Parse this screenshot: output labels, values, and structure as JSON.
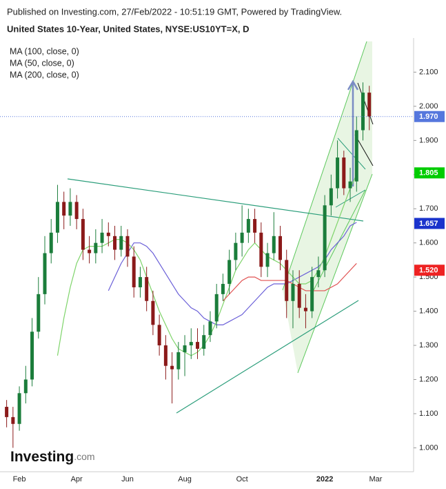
{
  "header": {
    "published": "Published on Investing.com, 27/Feb/2022 - 10:51:19 GMT, Powered by TradingView."
  },
  "logo": {
    "name": "Investing",
    "suffix": ".com"
  },
  "chart_data": {
    "type": "candlestick",
    "title": "United States 10-Year, United States, NYSE:US10YT=X, D",
    "categories": [
      null,
      null,
      "Feb",
      null,
      null,
      null,
      null,
      null,
      null,
      null,
      null,
      "Apr",
      null,
      null,
      null,
      null,
      null,
      null,
      null,
      "Jun",
      null,
      null,
      null,
      null,
      null,
      null,
      null,
      null,
      "Aug",
      null,
      null,
      null,
      null,
      null,
      null,
      null,
      null,
      "Oct",
      null,
      null,
      null,
      null,
      null,
      null,
      null,
      null,
      null,
      null,
      null,
      null,
      "2022",
      null,
      null,
      null,
      null,
      null,
      null,
      null,
      "Mar",
      null
    ],
    "open": [
      1.12,
      1.09,
      1.07,
      1.16,
      1.2,
      1.34,
      1.45,
      1.57,
      1.63,
      1.72,
      1.68,
      1.72,
      1.67,
      1.58,
      1.57,
      1.6,
      1.63,
      1.62,
      1.58,
      1.62,
      1.56,
      1.47,
      1.5,
      1.43,
      1.36,
      1.3,
      1.24,
      1.23,
      1.28,
      1.3,
      1.31,
      1.29,
      1.33,
      1.37,
      1.45,
      1.48,
      1.55,
      1.6,
      1.63,
      1.67,
      1.63,
      1.53,
      1.57,
      1.62,
      1.55,
      1.43,
      1.48,
      1.41,
      1.4,
      1.5,
      1.52,
      1.71,
      1.76,
      1.85,
      1.76,
      1.78,
      1.93,
      2.04,
      null,
      null
    ],
    "high": [
      1.14,
      1.12,
      1.18,
      1.24,
      1.38,
      1.5,
      1.62,
      1.67,
      1.77,
      1.75,
      1.76,
      1.74,
      1.7,
      1.62,
      1.64,
      1.67,
      1.66,
      1.65,
      1.65,
      1.64,
      1.59,
      1.53,
      1.53,
      1.46,
      1.39,
      1.33,
      1.28,
      1.31,
      1.33,
      1.35,
      1.35,
      1.36,
      1.4,
      1.48,
      1.51,
      1.58,
      1.63,
      1.71,
      1.7,
      1.7,
      1.66,
      1.6,
      1.69,
      1.65,
      1.58,
      1.52,
      1.52,
      1.45,
      1.53,
      1.56,
      1.74,
      1.8,
      1.9,
      1.87,
      1.82,
      1.97,
      2.07,
      2.06,
      null,
      null
    ],
    "low": [
      1.06,
      1.0,
      1.05,
      1.13,
      1.18,
      1.32,
      1.42,
      1.54,
      1.6,
      1.64,
      1.65,
      1.64,
      1.55,
      1.54,
      1.54,
      1.57,
      1.59,
      1.55,
      1.56,
      1.53,
      1.44,
      1.44,
      1.4,
      1.33,
      1.27,
      1.2,
      1.13,
      1.2,
      1.21,
      1.26,
      1.26,
      1.27,
      1.31,
      1.35,
      1.43,
      1.45,
      1.52,
      1.56,
      1.6,
      1.6,
      1.5,
      1.5,
      1.55,
      1.52,
      1.38,
      1.35,
      1.38,
      1.35,
      1.38,
      1.47,
      1.5,
      1.68,
      1.73,
      1.74,
      1.72,
      1.75,
      1.9,
      1.93,
      null,
      null
    ],
    "close": [
      1.09,
      1.07,
      1.16,
      1.2,
      1.34,
      1.45,
      1.57,
      1.63,
      1.72,
      1.68,
      1.72,
      1.67,
      1.58,
      1.57,
      1.6,
      1.63,
      1.62,
      1.58,
      1.62,
      1.56,
      1.47,
      1.5,
      1.43,
      1.36,
      1.3,
      1.24,
      1.23,
      1.28,
      1.3,
      1.31,
      1.29,
      1.33,
      1.37,
      1.45,
      1.48,
      1.55,
      1.6,
      1.63,
      1.67,
      1.63,
      1.53,
      1.57,
      1.62,
      1.55,
      1.43,
      1.48,
      1.41,
      1.4,
      1.5,
      1.52,
      1.71,
      1.76,
      1.85,
      1.76,
      1.78,
      1.93,
      2.04,
      1.97,
      null,
      null
    ],
    "up_color": "#1b7d3b",
    "down_color": "#8b1a1a",
    "series": [
      {
        "name": "MA (100, close, 0)",
        "color": "#6a5fd8",
        "values": [
          null,
          null,
          null,
          null,
          null,
          null,
          null,
          null,
          null,
          null,
          null,
          null,
          null,
          null,
          null,
          null,
          1.46,
          1.5,
          1.54,
          1.57,
          1.6,
          1.6,
          1.59,
          1.57,
          1.54,
          1.51,
          1.48,
          1.45,
          1.43,
          1.41,
          1.4,
          1.38,
          1.37,
          1.36,
          1.36,
          1.37,
          1.38,
          1.39,
          1.41,
          1.43,
          1.45,
          1.47,
          1.48,
          1.48,
          1.48,
          1.49,
          1.5,
          1.51,
          1.52,
          1.53,
          1.55,
          1.58,
          1.6,
          1.62,
          1.65,
          1.66,
          null,
          null,
          null,
          null
        ]
      },
      {
        "name": "MA (50, close, 0)",
        "color": "#7ed46a",
        "values": [
          null,
          null,
          null,
          null,
          null,
          null,
          null,
          null,
          1.27,
          1.38,
          1.47,
          1.54,
          1.58,
          1.59,
          1.59,
          1.59,
          1.6,
          1.61,
          1.61,
          1.6,
          1.58,
          1.55,
          1.5,
          1.45,
          1.4,
          1.36,
          1.32,
          1.29,
          1.28,
          1.27,
          1.28,
          1.3,
          1.33,
          1.37,
          1.42,
          1.47,
          1.52,
          1.55,
          1.58,
          1.6,
          1.58,
          1.56,
          1.55,
          1.54,
          1.52,
          1.5,
          1.48,
          1.48,
          1.49,
          1.52,
          1.56,
          1.61,
          1.66,
          1.71,
          1.76,
          1.8,
          null,
          null,
          null,
          null
        ]
      },
      {
        "name": "MA (200, close, 0)",
        "color": "#e05050",
        "values": [
          null,
          null,
          null,
          null,
          null,
          null,
          null,
          null,
          null,
          null,
          null,
          null,
          null,
          null,
          null,
          null,
          null,
          null,
          null,
          null,
          null,
          null,
          null,
          null,
          null,
          null,
          null,
          null,
          null,
          null,
          null,
          null,
          null,
          null,
          1.43,
          1.45,
          1.47,
          1.49,
          1.5,
          1.5,
          1.49,
          1.49,
          1.49,
          1.49,
          1.49,
          1.48,
          1.47,
          1.46,
          1.46,
          1.46,
          1.46,
          1.47,
          1.48,
          1.5,
          1.52,
          1.54,
          null,
          null,
          null,
          null
        ]
      }
    ],
    "price_labels": [
      {
        "value": 1.97,
        "label": "1.970",
        "color": "#5577dd"
      },
      {
        "value": 1.805,
        "label": "1.805",
        "color": "#00cc00"
      },
      {
        "value": 1.657,
        "label": "1.657",
        "color": "#1a33cc"
      },
      {
        "value": 1.52,
        "label": "1.520",
        "color": "#ee2222"
      }
    ],
    "ylim": [
      0.93,
      2.2
    ],
    "yticks": [
      {
        "value": 1.0,
        "label": "1.000"
      },
      {
        "value": 1.1,
        "label": "1.100"
      },
      {
        "value": 1.2,
        "label": "1.200"
      },
      {
        "value": 1.3,
        "label": "1.300"
      },
      {
        "value": 1.4,
        "label": "1.400"
      },
      {
        "value": 1.5,
        "label": "1.500"
      },
      {
        "value": 1.6,
        "label": "1.600"
      },
      {
        "value": 1.7,
        "label": "1.700"
      },
      {
        "value": 1.8,
        "label": "1.800"
      },
      {
        "value": 1.9,
        "label": "1.900"
      },
      {
        "value": 2.0,
        "label": "2.000"
      },
      {
        "value": 2.1,
        "label": "2.100"
      }
    ]
  }
}
